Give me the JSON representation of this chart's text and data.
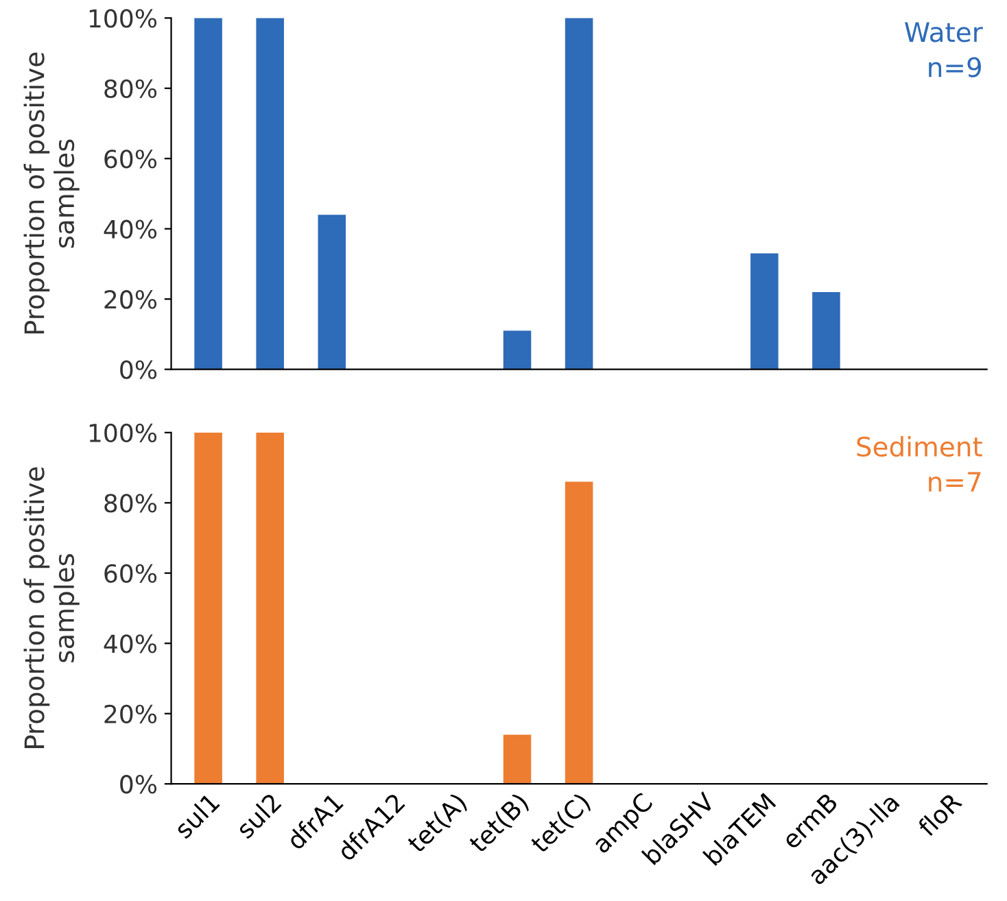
{
  "chart_data": [
    {
      "type": "bar",
      "ylabel": "Proportion of positive samples",
      "categories": [
        null,
        null,
        null,
        null,
        null,
        null,
        null,
        null,
        null,
        null,
        null,
        null,
        null
      ],
      "series": [
        {
          "color": "#2e6bb8",
          "values": [
            100,
            100,
            44,
            0,
            0,
            11,
            100,
            0,
            0,
            33,
            22,
            0,
            0
          ]
        }
      ],
      "ylim": [
        0,
        100
      ],
      "yticks": [
        {
          "value": 0,
          "label": "0%"
        },
        {
          "value": 20,
          "label": "20%"
        },
        {
          "value": 40,
          "label": "40%"
        },
        {
          "value": 60,
          "label": "60%"
        },
        {
          "value": 80,
          "label": "80%"
        },
        {
          "value": 100,
          "label": "100%"
        }
      ],
      "annotations": [
        "Water",
        "n=9"
      ],
      "tick_labels": "y",
      "grid": false,
      "legend": false
    },
    {
      "type": "bar",
      "ylabel": "Proportion of positive samples",
      "categories": [
        "sul1",
        "sul2",
        "dfrA1",
        "dfrA12",
        "tet(A)",
        "tet(B)",
        "tet(C)",
        "ampC",
        "blaSHV",
        "blaTEM",
        "ermB",
        "aac(3)-lla",
        "floR"
      ],
      "series": [
        {
          "color": "#ed7d31",
          "values": [
            100,
            100,
            0,
            0,
            0,
            14,
            86,
            0,
            0,
            0,
            0,
            0,
            0
          ]
        }
      ],
      "ylim": [
        0,
        100
      ],
      "yticks": [
        {
          "value": 0,
          "label": "0%"
        },
        {
          "value": 20,
          "label": "20%"
        },
        {
          "value": 40,
          "label": "40%"
        },
        {
          "value": 60,
          "label": "60%"
        },
        {
          "value": 80,
          "label": "80%"
        },
        {
          "value": 100,
          "label": "100%"
        }
      ],
      "annotations": [
        "Sediment",
        "n=7"
      ],
      "grid": false,
      "legend": false
    }
  ]
}
